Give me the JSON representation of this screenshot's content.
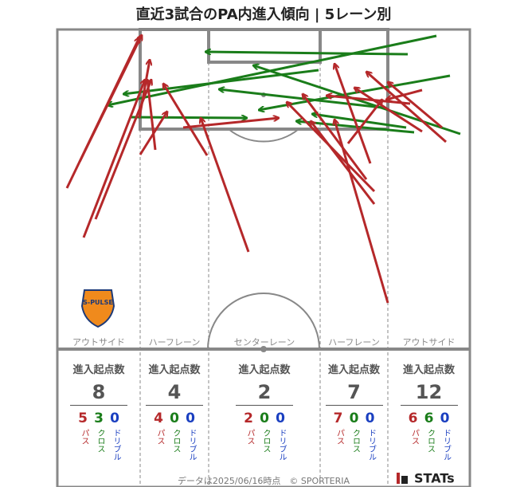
{
  "title": "直近3試合のPA内進入傾向 | 5レーン別",
  "badge": "S-PULSE",
  "lanes": [
    {
      "name": "アウトサイド",
      "label": "進入起点数",
      "total": 8,
      "pass": 5,
      "cross": 3,
      "dribble": 0,
      "pass_label": "パス",
      "cross_label": "クロス",
      "dribble_label": "ドリブル"
    },
    {
      "name": "ハーフレーン",
      "label": "進入起点数",
      "total": 4,
      "pass": 4,
      "cross": 0,
      "dribble": 0,
      "pass_label": "パス",
      "cross_label": "クロス",
      "dribble_label": "ドリブル"
    },
    {
      "name": "センターレーン",
      "label": "進入起点数",
      "total": 2,
      "pass": 2,
      "cross": 0,
      "dribble": 0,
      "pass_label": "パス",
      "cross_label": "クロス",
      "dribble_label": "ドリブル"
    },
    {
      "name": "ハーフレーン",
      "label": "進入起点数",
      "total": 7,
      "pass": 7,
      "cross": 0,
      "dribble": 0,
      "pass_label": "パス",
      "cross_label": "クロス",
      "dribble_label": "ドリブル"
    },
    {
      "name": "アウトサイド",
      "label": "進入起点数",
      "total": 12,
      "pass": 6,
      "cross": 6,
      "dribble": 0,
      "pass_label": "パス",
      "cross_label": "クロス",
      "dribble_label": "ドリブル"
    }
  ],
  "footer": "データは2025/06/16時点　© SPORTERIA",
  "logo": "STATs"
}
